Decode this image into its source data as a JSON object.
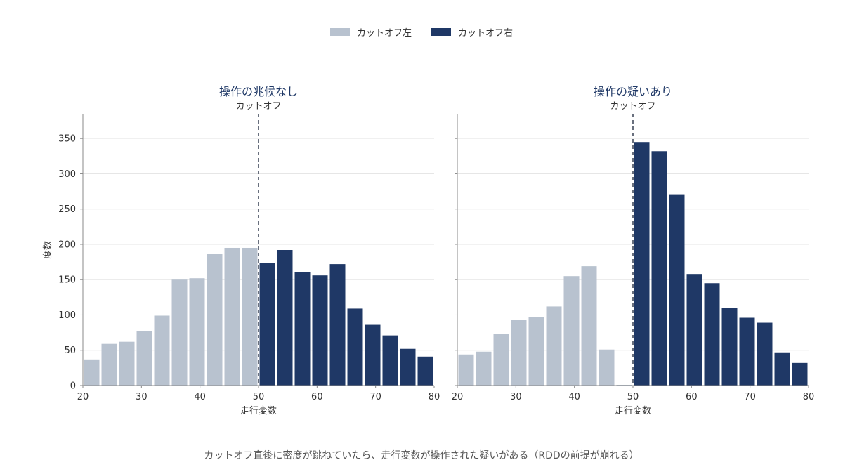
{
  "colors": {
    "left": "#b8c2cf",
    "right": "#1f3866",
    "title": "#1f3866",
    "cutoff_line": "#444c5e",
    "grid": "#e6e6e6",
    "axis": "#888888",
    "text": "#333333"
  },
  "legend": {
    "left_label": "カットオフ左",
    "right_label": "カットオフ右",
    "placement": "top-center"
  },
  "caption": "カットオフ直後に密度が跳ねていたら、走行変数が操作された疑いがある（RDDの前提が崩れる）",
  "chart_data": [
    {
      "type": "bar",
      "title": "操作の兆候なし",
      "cutoff": 50,
      "cutoff_label": "カットオフ",
      "xlabel": "走行変数",
      "ylabel": "度数",
      "xlim": [
        20,
        80
      ],
      "ylim": [
        0,
        385
      ],
      "xticks": [
        20,
        30,
        40,
        50,
        60,
        70,
        80
      ],
      "yticks": [
        0,
        50,
        100,
        150,
        200,
        250,
        300,
        350
      ],
      "grid": "horizontal",
      "bin_width": 3,
      "bins": [
        20,
        23,
        26,
        29,
        32,
        35,
        38,
        41,
        44,
        47,
        50,
        53,
        56,
        59,
        62,
        65,
        68,
        71,
        74,
        77
      ],
      "values": [
        37,
        59,
        62,
        77,
        99,
        150,
        152,
        187,
        195,
        195,
        174,
        192,
        161,
        156,
        172,
        109,
        86,
        71,
        52,
        41
      ]
    },
    {
      "type": "bar",
      "title": "操作の疑いあり",
      "cutoff": 50,
      "cutoff_label": "カットオフ",
      "xlabel": "走行変数",
      "ylabel": "",
      "xlim": [
        20,
        80
      ],
      "ylim": [
        0,
        385
      ],
      "xticks": [
        20,
        30,
        40,
        50,
        60,
        70,
        80
      ],
      "yticks": [
        0,
        50,
        100,
        150,
        200,
        250,
        300,
        350
      ],
      "grid": "horizontal",
      "bin_width": 3,
      "bins": [
        20,
        23,
        26,
        29,
        32,
        35,
        38,
        41,
        44,
        47,
        50,
        53,
        56,
        59,
        62,
        65,
        68,
        71,
        74,
        77
      ],
      "values": [
        44,
        48,
        73,
        93,
        97,
        112,
        155,
        169,
        51,
        1,
        345,
        332,
        271,
        158,
        145,
        110,
        96,
        89,
        47,
        32
      ]
    }
  ]
}
